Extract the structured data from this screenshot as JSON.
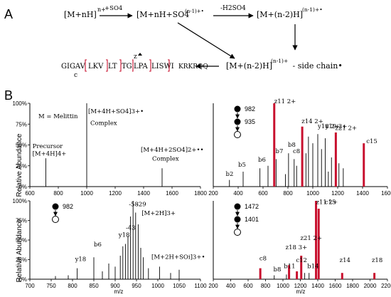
{
  "panel_a": {
    "label": "A",
    "species": {
      "precursor": "[M+nH]",
      "precursor_charge": "n+",
      "complex": "[M+nH+SO4",
      "complex_charge": "(n-1)+•",
      "minus_water": "[M+(n-2)H]",
      "minus_water_charge": "(n-1)+•",
      "minus_sidechain": "[M+(n-2)H]",
      "minus_sidechain_charge": "(n-1)+",
      "minus_sidechain_suffix": " - side chain•"
    },
    "arrows": {
      "plus_so4": "+SO4",
      "minus_h2so4": "-H2SO4"
    },
    "sequence": {
      "groups": [
        "GIGAV",
        "LKV",
        "LT",
        "TG",
        "LPA",
        "LISWI",
        "KRKRQQ"
      ],
      "c_label": "c",
      "z_label": "z"
    }
  },
  "panel_b": {
    "label": "B",
    "y_axis_label": "Relative Abundance",
    "x_axis_label": "m/z",
    "colors": {
      "cleavage_red": "#c8102e",
      "peak_black": "#000000",
      "axis": "#000000"
    }
  },
  "chart_data": [
    {
      "id": "ms1_left_top",
      "type": "bar",
      "xlim": [
        600,
        1800
      ],
      "ylim": [
        0,
        100
      ],
      "x_ticks": [
        "600",
        "800",
        "1000",
        "1200",
        "1400",
        "1600",
        "1800"
      ],
      "y_ticks": [
        "0%",
        "25%",
        "50%",
        "75%",
        "100%"
      ],
      "annotations": [
        {
          "text": "M = Melittin",
          "x": 660,
          "y": 82
        },
        {
          "text": "Precursor",
          "x": 618,
          "y": 46
        },
        {
          "text": "[M+4H]4+",
          "x": 618,
          "y": 37
        },
        {
          "text": "[M+4H+SO4]3+•",
          "x": 1010,
          "y": 88
        },
        {
          "text": "Complex",
          "x": 1025,
          "y": 74
        },
        {
          "text": "[M+4H+2SO4]2+••",
          "x": 1380,
          "y": 42
        },
        {
          "text": "Complex",
          "x": 1460,
          "y": 31
        }
      ],
      "peaks": [
        {
          "x": 712,
          "y": 34,
          "color": "black"
        },
        {
          "x": 1000,
          "y": 100,
          "color": "black"
        },
        {
          "x": 1530,
          "y": 22,
          "color": "black"
        }
      ]
    },
    {
      "id": "ms3_right_top",
      "type": "bar",
      "xlim": [
        200,
        1600
      ],
      "ylim": [
        0,
        100
      ],
      "x_ticks": [
        "200",
        "400",
        "600",
        "800",
        "1000",
        "1200",
        "1400",
        "1600"
      ],
      "y_ticks": [],
      "scan": [
        "982",
        "935"
      ],
      "annotations": [
        {
          "text": "z11 2+",
          "x": 690,
          "y": 100
        },
        {
          "text": "z14 2+",
          "x": 910,
          "y": 76
        },
        {
          "text": "y18 2+",
          "x": 1040,
          "y": 70
        },
        {
          "text": "y19 2+",
          "x": 1100,
          "y": 70
        },
        {
          "text": "z21 2+",
          "x": 1180,
          "y": 68
        },
        {
          "text": "c15",
          "x": 1430,
          "y": 52
        },
        {
          "text": "b8",
          "x": 800,
          "y": 48
        },
        {
          "text": "c8",
          "x": 840,
          "y": 40
        },
        {
          "text": "b7",
          "x": 700,
          "y": 40
        },
        {
          "text": "b6",
          "x": 560,
          "y": 30
        },
        {
          "text": "b5",
          "x": 400,
          "y": 24
        },
        {
          "text": "b2",
          "x": 300,
          "y": 13
        }
      ],
      "peaks": [
        {
          "x": 690,
          "y": 100,
          "color": "red"
        },
        {
          "x": 915,
          "y": 72,
          "color": "red"
        },
        {
          "x": 1185,
          "y": 65,
          "color": "red"
        },
        {
          "x": 1410,
          "y": 52,
          "color": "red"
        },
        {
          "x": 1040,
          "y": 63,
          "color": "black"
        },
        {
          "x": 1100,
          "y": 58,
          "color": "black"
        },
        {
          "x": 965,
          "y": 60,
          "color": "black"
        },
        {
          "x": 1000,
          "y": 52,
          "color": "black"
        },
        {
          "x": 945,
          "y": 40,
          "color": "black"
        },
        {
          "x": 1070,
          "y": 45,
          "color": "black"
        },
        {
          "x": 1150,
          "y": 35,
          "color": "black"
        },
        {
          "x": 1210,
          "y": 28,
          "color": "black"
        },
        {
          "x": 1245,
          "y": 22,
          "color": "black"
        },
        {
          "x": 805,
          "y": 40,
          "color": "black"
        },
        {
          "x": 850,
          "y": 33,
          "color": "black"
        },
        {
          "x": 870,
          "y": 25,
          "color": "black"
        },
        {
          "x": 705,
          "y": 33,
          "color": "black"
        },
        {
          "x": 640,
          "y": 25,
          "color": "black"
        },
        {
          "x": 575,
          "y": 22,
          "color": "black"
        },
        {
          "x": 440,
          "y": 18,
          "color": "black"
        },
        {
          "x": 330,
          "y": 8,
          "color": "black"
        },
        {
          "x": 780,
          "y": 15,
          "color": "black"
        },
        {
          "x": 1125,
          "y": 18,
          "color": "black"
        }
      ]
    },
    {
      "id": "ms3_left_bottom",
      "type": "bar",
      "xlim": [
        700,
        1100
      ],
      "ylim": [
        0,
        100
      ],
      "x_ticks": [
        "700",
        "750",
        "800",
        "850",
        "900",
        "950",
        "1000",
        "1050",
        "1100"
      ],
      "y_ticks": [
        "0%",
        "25%",
        "50%",
        "75%",
        "100%"
      ],
      "scan": [
        "982"
      ],
      "annotations": [
        {
          "text": "-58",
          "x": 932,
          "y": 93
        },
        {
          "text": "-29",
          "x": 950,
          "y": 93
        },
        {
          "text": "-43",
          "x": 925,
          "y": 63
        },
        {
          "text": "[M+2H]3+",
          "x": 962,
          "y": 82
        },
        {
          "text": "y18",
          "x": 908,
          "y": 54
        },
        {
          "text": "b6",
          "x": 850,
          "y": 42
        },
        {
          "text": "y18",
          "x": 806,
          "y": 23
        },
        {
          "text": "[M+2H+SOi]3+•",
          "x": 985,
          "y": 26
        }
      ],
      "peaks": [
        {
          "x": 942,
          "y": 100,
          "color": "black"
        },
        {
          "x": 948,
          "y": 85,
          "color": "black"
        },
        {
          "x": 936,
          "y": 80,
          "color": "black"
        },
        {
          "x": 954,
          "y": 70,
          "color": "black"
        },
        {
          "x": 930,
          "y": 55,
          "color": "black"
        },
        {
          "x": 924,
          "y": 45,
          "color": "black"
        },
        {
          "x": 918,
          "y": 42,
          "color": "black"
        },
        {
          "x": 960,
          "y": 40,
          "color": "black"
        },
        {
          "x": 912,
          "y": 30,
          "color": "black"
        },
        {
          "x": 966,
          "y": 28,
          "color": "black"
        },
        {
          "x": 850,
          "y": 28,
          "color": "black"
        },
        {
          "x": 811,
          "y": 14,
          "color": "black"
        },
        {
          "x": 885,
          "y": 20,
          "color": "black"
        },
        {
          "x": 900,
          "y": 16,
          "color": "black"
        },
        {
          "x": 978,
          "y": 14,
          "color": "black"
        },
        {
          "x": 1004,
          "y": 16,
          "color": "black"
        },
        {
          "x": 1050,
          "y": 12,
          "color": "black"
        },
        {
          "x": 1030,
          "y": 8,
          "color": "black"
        },
        {
          "x": 870,
          "y": 10,
          "color": "black"
        },
        {
          "x": 790,
          "y": 5,
          "color": "black"
        },
        {
          "x": 760,
          "y": 4,
          "color": "black"
        }
      ]
    },
    {
      "id": "ms3_right_bottom",
      "type": "bar",
      "xlim": [
        200,
        2200
      ],
      "ylim": [
        0,
        100
      ],
      "x_ticks": [
        "200",
        "400",
        "600",
        "800",
        "1000",
        "1200",
        "1400",
        "1600",
        "1800",
        "2000",
        "2200"
      ],
      "y_ticks": [],
      "scan": [
        "1472",
        "1401"
      ],
      "annotations": [
        {
          "text": "z11 2+",
          "x": 1380,
          "y": 96
        },
        {
          "text": "c15",
          "x": 1480,
          "y": 96
        },
        {
          "text": "c8",
          "x": 730,
          "y": 24
        },
        {
          "text": "z18 3+",
          "x": 1030,
          "y": 38
        },
        {
          "text": "z21 2+",
          "x": 1200,
          "y": 50
        },
        {
          "text": "b11",
          "x": 1010,
          "y": 14
        },
        {
          "text": "c12",
          "x": 1150,
          "y": 22
        },
        {
          "text": "b14",
          "x": 1280,
          "y": 14
        },
        {
          "text": "b8",
          "x": 890,
          "y": 10
        },
        {
          "text": "z14",
          "x": 1650,
          "y": 22
        },
        {
          "text": "z18",
          "x": 2020,
          "y": 22
        }
      ],
      "peaks": [
        {
          "x": 1380,
          "y": 100,
          "color": "red"
        },
        {
          "x": 1410,
          "y": 90,
          "color": "red"
        },
        {
          "x": 740,
          "y": 14,
          "color": "red"
        },
        {
          "x": 1070,
          "y": 18,
          "color": "red"
        },
        {
          "x": 1210,
          "y": 30,
          "color": "red"
        },
        {
          "x": 1160,
          "y": 10,
          "color": "red"
        },
        {
          "x": 1250,
          "y": 8,
          "color": "black"
        },
        {
          "x": 1300,
          "y": 8,
          "color": "black"
        },
        {
          "x": 1040,
          "y": 6,
          "color": "black"
        },
        {
          "x": 900,
          "y": 5,
          "color": "black"
        },
        {
          "x": 1680,
          "y": 8,
          "color": "red"
        },
        {
          "x": 2050,
          "y": 8,
          "color": "red"
        }
      ]
    }
  ]
}
